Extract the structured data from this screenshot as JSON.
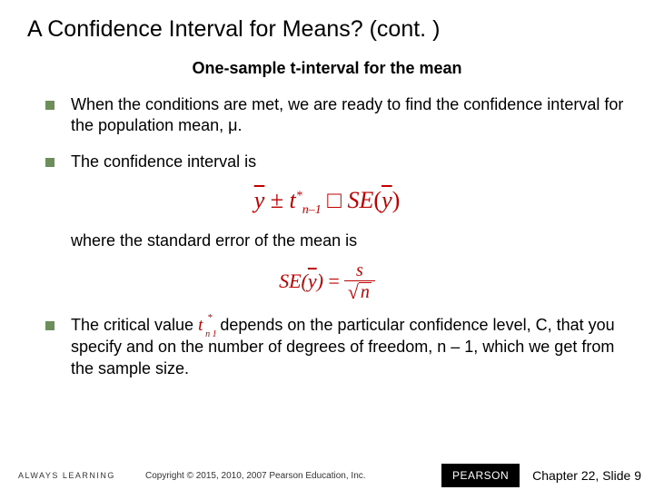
{
  "title": "A Confidence Interval for Means? (cont. )",
  "subtitle": "One-sample t-interval for the mean",
  "bullets": {
    "b1": "When the conditions are met, we are ready to find the confidence interval for the population mean, μ.",
    "b2": "The confidence interval is",
    "b3a": "The critical value ",
    "b3b": " depends on the particular confidence level, C, that you specify and on the number of degrees of freedom, n – 1, which we get from the sample size."
  },
  "sub_text": "where the standard error of the mean is",
  "formula1": {
    "ybar": "y",
    "pm": "±",
    "t": "t",
    "sub": "n–1",
    "sup": "*",
    "box": "□",
    "se": "SE",
    "lparen": "(",
    "rparen": ")"
  },
  "formula2": {
    "se": "SE",
    "ybar": "y",
    "eq": "=",
    "s": "s",
    "n": "n"
  },
  "inline_t": {
    "t": "t",
    "sup": "*",
    "sub": "n 1"
  },
  "footer": {
    "left": "ALWAYS LEARNING",
    "center": "Copyright © 2015, 2010, 2007 Pearson Education, Inc.",
    "brand": "PEARSON",
    "right": "Chapter 22, Slide 9"
  },
  "colors": {
    "bullet_marker": "#6b8e5a",
    "formula": "#c00000",
    "text": "#000000",
    "background": "#ffffff"
  }
}
